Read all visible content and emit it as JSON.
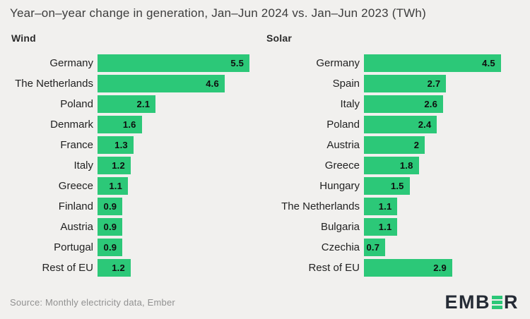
{
  "title": "Year–on–year change in generation, Jan–Jun 2024 vs. Jan–Jun 2023 (TWh)",
  "source": "Source: Monthly electricity data, Ember",
  "logo": {
    "prefix": "EMB",
    "suffix": "R",
    "e_icon": "ember-green-bars-e"
  },
  "colors": {
    "background": "#f1f0ee",
    "bar": "#2cc878",
    "title_text": "#3d3d3d",
    "label_text": "#222222",
    "value_text": "#0e0e0e",
    "source_text": "#919191",
    "logo_text": "#252b35"
  },
  "chart_data": [
    {
      "type": "bar",
      "orientation": "horizontal",
      "title": "Wind",
      "categories": [
        "Germany",
        "The Netherlands",
        "Poland",
        "Denmark",
        "France",
        "Italy",
        "Greece",
        "Finland",
        "Austria",
        "Portugal",
        "Rest of EU"
      ],
      "values": [
        5.5,
        4.6,
        2.1,
        1.6,
        1.3,
        1.2,
        1.1,
        0.9,
        0.9,
        0.9,
        1.2
      ],
      "value_labels": [
        "5.5",
        "4.6",
        "2.1",
        "1.6",
        "1.3",
        "1.2",
        "1.1",
        "0.9",
        "0.9",
        "0.9",
        "1.2"
      ],
      "xlabel": "",
      "ylabel": "",
      "xmax": 5.6,
      "grid": false,
      "legend": false,
      "value_labels_position": "inside-end"
    },
    {
      "type": "bar",
      "orientation": "horizontal",
      "title": "Solar",
      "categories": [
        "Germany",
        "Spain",
        "Italy",
        "Poland",
        "Austria",
        "Greece",
        "Hungary",
        "The Netherlands",
        "Bulgaria",
        "Czechia",
        "Rest of EU"
      ],
      "values": [
        4.5,
        2.7,
        2.6,
        2.4,
        2,
        1.8,
        1.5,
        1.1,
        1.1,
        0.7,
        2.9
      ],
      "value_labels": [
        "4.5",
        "2.7",
        "2.6",
        "2.4",
        "2",
        "1.8",
        "1.5",
        "1.1",
        "1.1",
        "0.7",
        "2.9"
      ],
      "xlabel": "",
      "ylabel": "",
      "xmax": 4.55,
      "grid": false,
      "legend": false,
      "value_labels_position": "inside-end"
    }
  ]
}
